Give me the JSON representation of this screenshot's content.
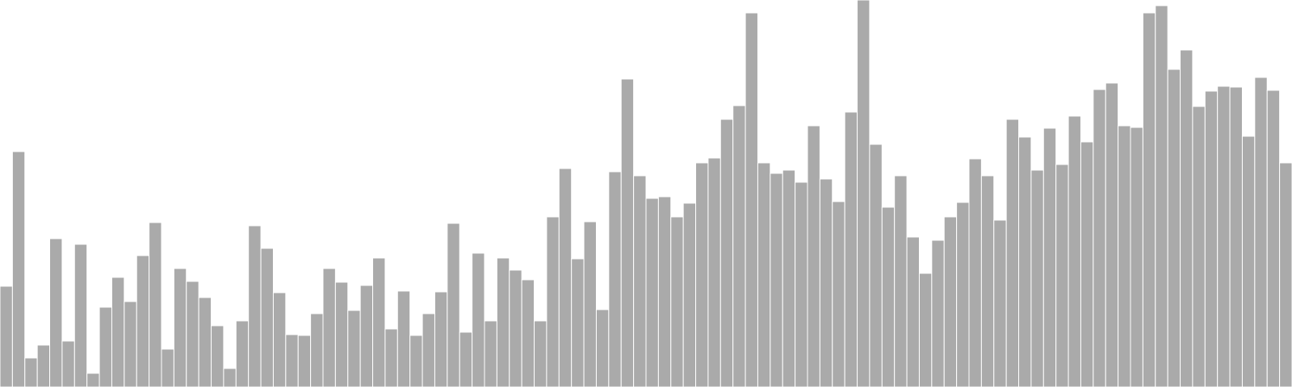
{
  "chart_data": {
    "type": "bar",
    "title": "",
    "xlabel": "",
    "ylabel": "",
    "grid": false,
    "legend": false,
    "bar_color": "#aaaaaa",
    "ylim": [
      0,
      480
    ],
    "values": [
      125,
      292,
      36,
      52,
      184,
      57,
      177,
      17,
      99,
      136,
      106,
      163,
      204,
      47,
      147,
      131,
      111,
      76,
      23,
      82,
      200,
      172,
      117,
      65,
      64,
      91,
      147,
      130,
      95,
      126,
      160,
      72,
      119,
      64,
      91,
      118,
      203,
      68,
      166,
      82,
      160,
      145,
      133,
      82,
      211,
      271,
      159,
      205,
      96,
      267,
      382,
      262,
      234,
      236,
      211,
      228,
      278,
      284,
      332,
      349,
      464,
      278,
      265,
      269,
      254,
      324,
      258,
      230,
      341,
      480,
      301,
      223,
      262,
      186,
      141,
      182,
      211,
      229,
      283,
      262,
      207,
      332,
      310,
      269,
      321,
      276,
      336,
      304,
      369,
      377,
      324,
      322,
      464,
      473,
      394,
      418,
      348,
      367,
      373,
      372,
      311,
      384,
      368,
      278
    ]
  }
}
